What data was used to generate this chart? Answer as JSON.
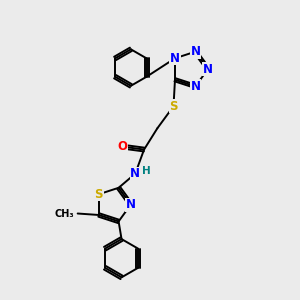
{
  "background_color": "#ebebeb",
  "atom_colors": {
    "N": "#0000ff",
    "S": "#ccaa00",
    "O": "#ff0000",
    "H": "#008080",
    "C": "#000000"
  },
  "bond_color": "#000000",
  "bond_width": 1.4,
  "font_size_atoms": 8.5,
  "font_size_small": 7.5
}
